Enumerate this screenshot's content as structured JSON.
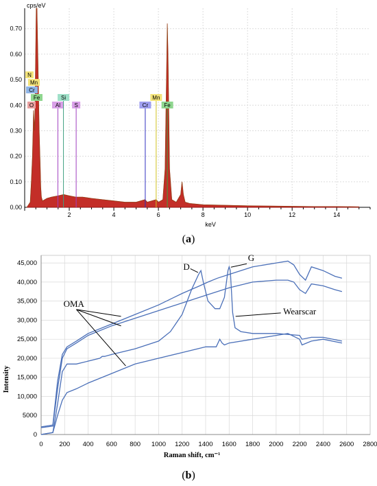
{
  "chart_data": [
    {
      "type": "line",
      "panel_label": "a",
      "ylabel": "cps/eV",
      "xlabel": "keV",
      "xlim": [
        0,
        15.5
      ],
      "ylim": [
        0,
        0.78
      ],
      "x_ticks": [
        2,
        4,
        6,
        8,
        10,
        12,
        14
      ],
      "y_ticks": [
        0.0,
        0.1,
        0.2,
        0.3,
        0.4,
        0.5,
        0.6,
        0.7
      ],
      "y_tick_labels": [
        "0.00",
        "0.10",
        "0.20",
        "0.30",
        "0.40",
        "0.50",
        "0.60",
        "0.70"
      ],
      "grid": true,
      "spectrum": {
        "x": [
          0.1,
          0.25,
          0.3,
          0.35,
          0.4,
          0.45,
          0.52,
          0.55,
          0.6,
          0.65,
          0.7,
          0.72,
          0.75,
          0.8,
          0.9,
          1.0,
          1.2,
          1.5,
          1.75,
          2.0,
          2.3,
          2.6,
          3.0,
          3.5,
          4.0,
          4.5,
          5.0,
          5.4,
          5.5,
          5.9,
          6.0,
          6.2,
          6.3,
          6.38,
          6.4,
          6.43,
          6.5,
          6.6,
          6.8,
          7.0,
          7.06,
          7.12,
          7.2,
          7.4,
          8.0,
          9.0,
          10.0,
          11.0,
          12.0,
          13.0,
          14.0,
          15.0
        ],
        "y": [
          0.0,
          0.02,
          0.1,
          0.2,
          0.38,
          0.3,
          0.78,
          0.78,
          0.55,
          0.3,
          0.15,
          0.08,
          0.04,
          0.025,
          0.03,
          0.035,
          0.04,
          0.045,
          0.05,
          0.045,
          0.04,
          0.04,
          0.035,
          0.03,
          0.025,
          0.02,
          0.02,
          0.03,
          0.02,
          0.03,
          0.02,
          0.03,
          0.15,
          0.6,
          0.72,
          0.6,
          0.15,
          0.03,
          0.02,
          0.05,
          0.1,
          0.05,
          0.02,
          0.015,
          0.01,
          0.008,
          0.006,
          0.005,
          0.004,
          0.003,
          0.003,
          0.002
        ]
      },
      "element_markers": [
        {
          "label": "N",
          "x": 0.39,
          "color": "#f3e37a"
        },
        {
          "label": "Mn",
          "x": 0.55,
          "color": "#f3e37a"
        },
        {
          "label": "Cr",
          "x": 0.45,
          "color": "#8fb5e6"
        },
        {
          "label": "Fe",
          "x": 0.6,
          "color": "#8fd68f"
        },
        {
          "label": "O",
          "x": 0.52,
          "color": "#e8a0a0"
        },
        {
          "label": "Al",
          "x": 1.49,
          "color": "#d9a0e8"
        },
        {
          "label": "Si",
          "x": 1.74,
          "color": "#9fe0c8"
        },
        {
          "label": "S",
          "x": 2.31,
          "color": "#d9a0e8"
        },
        {
          "label": "Cr",
          "x": 5.41,
          "color": "#9f9ff0"
        },
        {
          "label": "Mn",
          "x": 5.9,
          "color": "#f3e37a"
        },
        {
          "label": "Fe",
          "x": 6.4,
          "color": "#8fd68f"
        }
      ]
    },
    {
      "type": "line",
      "panel_label": "b",
      "xlabel": "Raman shift, cm⁻¹",
      "ylabel": "Intensity",
      "xlim": [
        0,
        2800
      ],
      "ylim": [
        0,
        47000
      ],
      "x_ticks": [
        0,
        200,
        400,
        600,
        800,
        1000,
        1200,
        1400,
        1600,
        1800,
        2000,
        2200,
        2400,
        2600,
        2800
      ],
      "y_ticks": [
        0,
        5000,
        10000,
        15000,
        20000,
        25000,
        30000,
        35000,
        40000,
        45000
      ],
      "y_tick_labels": [
        "0",
        "5000",
        "10,000",
        "15,000",
        "20,000",
        "25,000",
        "30,000",
        "35,000",
        "40,000",
        "45,000"
      ],
      "grid": true,
      "series": [
        {
          "x": [
            0,
            100,
            140,
            180,
            220,
            300,
            400,
            600,
            800,
            1000,
            1200,
            1350,
            1420,
            1500,
            1600,
            1700,
            1800,
            2000,
            2100,
            2150,
            2200,
            2250,
            2300,
            2400,
            2500,
            2560
          ],
          "y": [
            2000,
            2500,
            14000,
            21000,
            23000,
            24500,
            26500,
            29000,
            31500,
            34000,
            37000,
            39000,
            40000,
            41000,
            42000,
            43000,
            44000,
            45000,
            45500,
            44500,
            42000,
            40500,
            44000,
            43000,
            41500,
            41000
          ]
        },
        {
          "x": [
            0,
            100,
            140,
            180,
            220,
            300,
            400,
            600,
            800,
            1000,
            1200,
            1400,
            1600,
            1800,
            2000,
            2100,
            2150,
            2200,
            2250,
            2300,
            2400,
            2500,
            2560
          ],
          "y": [
            1800,
            2200,
            12000,
            20000,
            22500,
            24000,
            26000,
            28500,
            30500,
            32500,
            34500,
            36500,
            38500,
            40000,
            40500,
            40500,
            40000,
            38000,
            37000,
            39500,
            39000,
            38000,
            37500
          ]
        },
        {
          "x": [
            0,
            100,
            140,
            180,
            220,
            300,
            500,
            520,
            540,
            600,
            800,
            1000,
            1100,
            1200,
            1280,
            1340,
            1360,
            1380,
            1420,
            1480,
            1520,
            1560,
            1590,
            1600,
            1610,
            1630,
            1650,
            1700,
            1800,
            2000,
            2200,
            2220,
            2300,
            2400,
            2560
          ],
          "y": [
            0,
            500,
            8000,
            16500,
            18500,
            18500,
            20000,
            20500,
            20500,
            21000,
            22500,
            24500,
            27000,
            31500,
            38000,
            42000,
            43000,
            40000,
            35000,
            33000,
            33000,
            36000,
            43000,
            44000,
            43000,
            32000,
            28000,
            27000,
            26500,
            26500,
            26000,
            25000,
            25500,
            25500,
            24500
          ]
        },
        {
          "x": [
            0,
            100,
            140,
            180,
            220,
            300,
            400,
            600,
            800,
            1000,
            1200,
            1400,
            1490,
            1520,
            1540,
            1560,
            1600,
            1800,
            2000,
            2100,
            2200,
            2220,
            2300,
            2400,
            2560
          ],
          "y": [
            0,
            500,
            5000,
            9000,
            11000,
            12000,
            13500,
            16000,
            18500,
            20000,
            21500,
            23000,
            23000,
            25000,
            24000,
            23500,
            24000,
            25000,
            26000,
            26500,
            25000,
            23500,
            24500,
            25000,
            24000
          ]
        }
      ],
      "annotations": [
        {
          "label": "D",
          "x": 1350,
          "y": 43000
        },
        {
          "label": "G",
          "x": 1600,
          "y": 44000
        },
        {
          "label": "OMA",
          "x": 300,
          "y": 34000
        },
        {
          "label": "Wearscar",
          "x": 1650,
          "y": 31000
        }
      ]
    }
  ],
  "labels": {
    "a": "(a)",
    "b": "(b)"
  }
}
